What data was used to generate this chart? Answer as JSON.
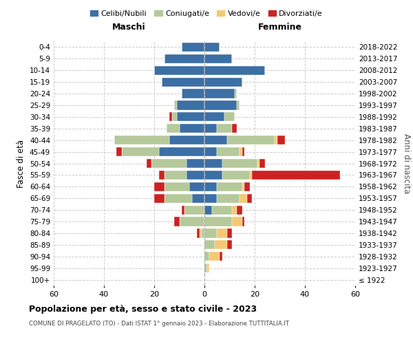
{
  "age_groups": [
    "100+",
    "95-99",
    "90-94",
    "85-89",
    "80-84",
    "75-79",
    "70-74",
    "65-69",
    "60-64",
    "55-59",
    "50-54",
    "45-49",
    "40-44",
    "35-39",
    "30-34",
    "25-29",
    "20-24",
    "15-19",
    "10-14",
    "5-9",
    "0-4"
  ],
  "birth_years": [
    "≤ 1922",
    "1923-1927",
    "1928-1932",
    "1933-1937",
    "1938-1942",
    "1943-1947",
    "1948-1952",
    "1953-1957",
    "1958-1962",
    "1963-1967",
    "1968-1972",
    "1973-1977",
    "1978-1982",
    "1983-1987",
    "1988-1992",
    "1993-1997",
    "1998-2002",
    "2003-2007",
    "2008-2012",
    "2013-2017",
    "2018-2022"
  ],
  "male": {
    "celibi": [
      0,
      0,
      0,
      0,
      0,
      0,
      0,
      5,
      6,
      7,
      7,
      18,
      14,
      10,
      11,
      11,
      9,
      17,
      20,
      16,
      9
    ],
    "coniugati": [
      0,
      0,
      0,
      0,
      1,
      10,
      8,
      11,
      10,
      9,
      14,
      15,
      22,
      5,
      2,
      1,
      0,
      0,
      0,
      0,
      0
    ],
    "vedovi": [
      0,
      0,
      0,
      0,
      1,
      0,
      0,
      0,
      0,
      0,
      0,
      0,
      0,
      0,
      0,
      0,
      0,
      0,
      0,
      0,
      0
    ],
    "divorziati": [
      0,
      0,
      0,
      0,
      1,
      2,
      1,
      4,
      4,
      2,
      2,
      2,
      0,
      0,
      1,
      0,
      0,
      0,
      0,
      0,
      0
    ]
  },
  "female": {
    "nubili": [
      0,
      0,
      0,
      0,
      0,
      0,
      3,
      5,
      5,
      7,
      7,
      5,
      9,
      5,
      8,
      13,
      12,
      15,
      24,
      11,
      6
    ],
    "coniugate": [
      0,
      1,
      2,
      4,
      5,
      11,
      8,
      9,
      10,
      11,
      14,
      9,
      19,
      6,
      4,
      1,
      1,
      0,
      0,
      0,
      0
    ],
    "vedove": [
      0,
      1,
      4,
      5,
      4,
      4,
      2,
      3,
      1,
      1,
      1,
      1,
      1,
      0,
      0,
      0,
      0,
      0,
      0,
      0,
      0
    ],
    "divorziate": [
      0,
      0,
      1,
      2,
      2,
      1,
      2,
      2,
      2,
      35,
      2,
      1,
      3,
      2,
      0,
      0,
      0,
      0,
      0,
      0,
      0
    ]
  },
  "colors": {
    "celibi": "#3c6fa5",
    "coniugati": "#b5c99a",
    "vedovi": "#f5c873",
    "divorziati": "#cc2222"
  },
  "xlim": 60,
  "title": "Popolazione per età, sesso e stato civile - 2023",
  "subtitle": "COMUNE DI PRAGELATO (TO) - Dati ISTAT 1° gennaio 2023 - Elaborazione TUTTITALIA.IT",
  "ylabel_left": "Fasce di età",
  "ylabel_right": "Anni di nascita",
  "legend_labels": [
    "Celibi/Nubili",
    "Coniugati/e",
    "Vedovi/e",
    "Divorziati/e"
  ],
  "maschi_label": "Maschi",
  "femmine_label": "Femmine",
  "bg_color": "#ffffff"
}
